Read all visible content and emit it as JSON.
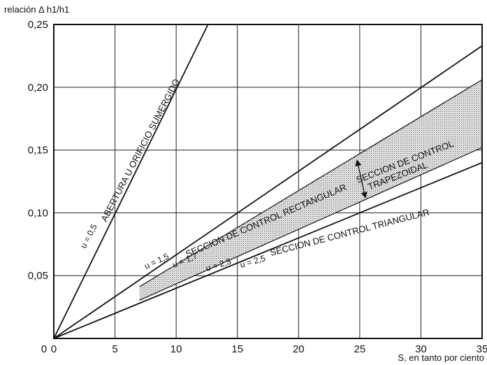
{
  "chart_data": {
    "type": "line",
    "ylabel": "relación Δ h1/h1",
    "xlabel": "S, en tanto por ciento",
    "xlim": [
      0,
      35
    ],
    "ylim": [
      0,
      0.25
    ],
    "x_ticks": [
      0,
      5,
      10,
      15,
      20,
      25,
      30,
      35
    ],
    "x_tick_labels": [
      "0",
      "5",
      "10",
      "15",
      "20",
      "25",
      "30",
      "35"
    ],
    "y_ticks": [
      0.05,
      0.1,
      0.15,
      0.2,
      0.25
    ],
    "y_tick_labels": [
      "0,05",
      "0,10",
      "0,15",
      "0,20",
      "0,25"
    ],
    "grid": true,
    "series": [
      {
        "name": "ABERTURA U ORIFICIO SUMERGIDO",
        "u_label": "u = 0,5",
        "x": [
          0,
          12.6
        ],
        "y": [
          0,
          0.25
        ]
      },
      {
        "name": "SECCION DE CONTROL RECTANGULAR",
        "u_label": "u = 1,5",
        "x": [
          0,
          35
        ],
        "y": [
          0,
          0.233
        ]
      },
      {
        "name": "",
        "u_label": "u = 1,7",
        "x": [
          0,
          35
        ],
        "y": [
          0,
          0.206
        ]
      },
      {
        "name": "",
        "u_label": "u = 2,3",
        "x": [
          0,
          35
        ],
        "y": [
          0,
          0.152
        ]
      },
      {
        "name": "SECCION DE CONTROL TRIANGULAR",
        "u_label": "u = 2,5",
        "x": [
          0,
          35
        ],
        "y": [
          0,
          0.14
        ]
      }
    ],
    "shaded_region": {
      "label": "SECCION DE CONTROL TRAPEZOIDAL",
      "between": [
        "u = 1,7",
        "u = 2,3"
      ],
      "x_range": [
        7,
        35
      ]
    }
  }
}
